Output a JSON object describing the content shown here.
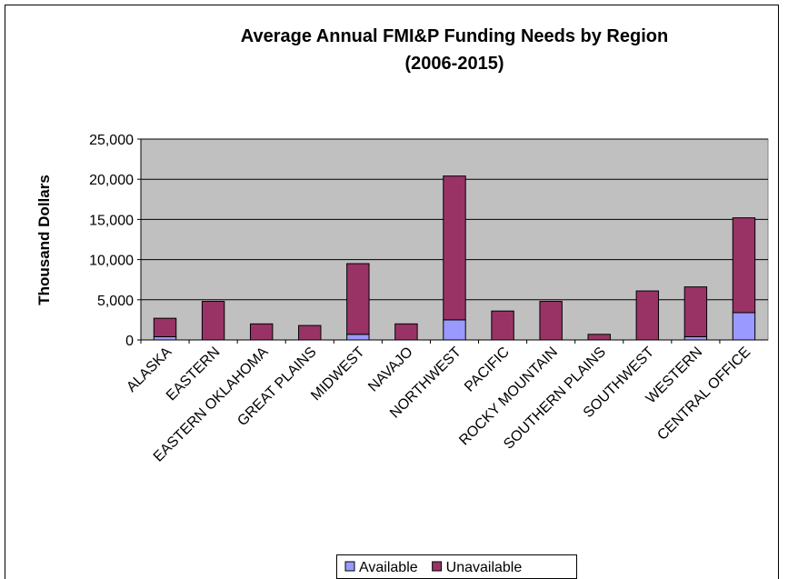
{
  "chart_data": {
    "type": "stacked_bar",
    "title": "Average Annual FMI&P Funding Needs by Region",
    "subtitle": "(2006-2015)",
    "ylabel": "Thousand Dollars",
    "categories": [
      "ALASKA",
      "EASTERN",
      "EASTERN OKLAHOMA",
      "GREAT PLAINS",
      "MIDWEST",
      "NAVAJO",
      "NORTHWEST",
      "PACIFIC",
      "ROCKY MOUNTAIN",
      "SOUTHERN PLAINS",
      "SOUTHWEST",
      "WESTERN",
      "CENTRAL OFFICE"
    ],
    "series": [
      {
        "name": "Available",
        "color": "#9999ff",
        "values": [
          400,
          0,
          0,
          0,
          700,
          0,
          2500,
          0,
          0,
          0,
          0,
          400,
          3400
        ]
      },
      {
        "name": "Unavailable",
        "color": "#993366",
        "values": [
          2300,
          4800,
          2000,
          1800,
          8800,
          2000,
          17900,
          3600,
          4800,
          700,
          6100,
          6200,
          11800
        ]
      }
    ],
    "ylim": [
      0,
      25000
    ],
    "yticks": [
      0,
      {
        "value": 5000,
        "label": "5,000"
      },
      {
        "value": 10000,
        "label": "10,000"
      },
      {
        "value": 15000,
        "label": "15,000"
      },
      {
        "value": 20000,
        "label": "20,000"
      },
      {
        "value": 25000,
        "label": "25,000"
      }
    ],
    "grid": true,
    "legend": "bottom"
  }
}
